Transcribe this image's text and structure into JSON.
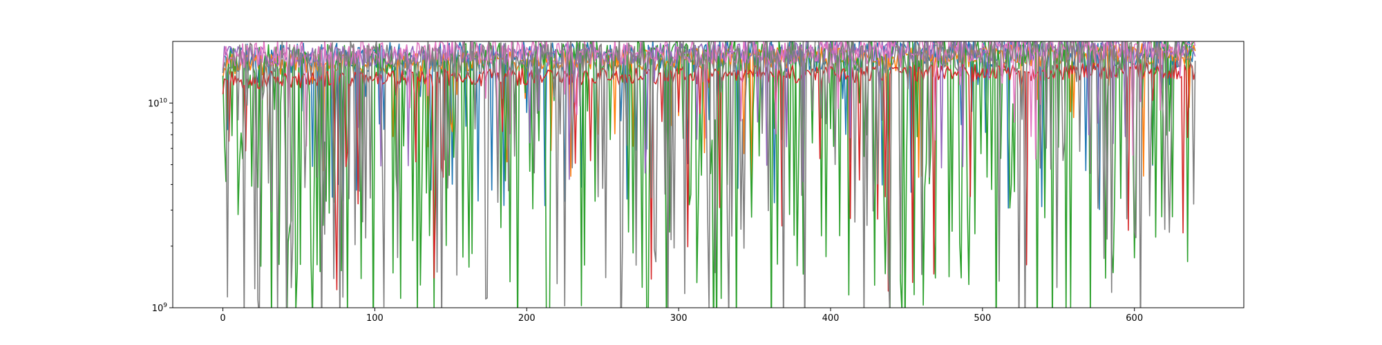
{
  "chart_data": {
    "type": "line",
    "title": "",
    "xlabel": "",
    "ylabel": "",
    "xlim": [
      -33,
      672
    ],
    "ylim": [
      1000000000,
      20000000000
    ],
    "yscale": "log",
    "grid": false,
    "legend": "none",
    "x_ticks": [
      {
        "value": 0,
        "label": "0"
      },
      {
        "value": 100,
        "label": "100"
      },
      {
        "value": 200,
        "label": "200"
      },
      {
        "value": 300,
        "label": "300"
      },
      {
        "value": 400,
        "label": "400"
      },
      {
        "value": 500,
        "label": "500"
      },
      {
        "value": 600,
        "label": "600"
      }
    ],
    "y_ticks": [
      {
        "value": 1000000000,
        "base": "10",
        "exp": "9"
      },
      {
        "value": 10000000000,
        "base": "10",
        "exp": "10"
      }
    ],
    "y_minor_ticks": [
      2000000000,
      3000000000,
      4000000000,
      5000000000,
      6000000000,
      7000000000,
      8000000000,
      9000000000
    ],
    "series": [
      {
        "color": "#1f77b4",
        "x_range": [
          0,
          640
        ],
        "base": 16500000000,
        "trend_end": 18000000000,
        "noise": 0.18,
        "dip_prob": 0.1,
        "dip_min": 3000000000,
        "seed": 11
      },
      {
        "color": "#ff7f0e",
        "x_range": [
          0,
          640
        ],
        "base": 15500000000,
        "trend_end": 17500000000,
        "noise": 0.12,
        "dip_prob": 0.06,
        "dip_min": 4000000000,
        "seed": 23
      },
      {
        "color": "#2ca02c",
        "x_range": [
          0,
          640
        ],
        "base": 16000000000,
        "trend_end": 18500000000,
        "noise": 0.2,
        "dip_prob": 0.34,
        "dip_min": 600000000,
        "seed": 37
      },
      {
        "color": "#d62728",
        "x_range": [
          0,
          640
        ],
        "base": 13000000000,
        "trend_end": 14500000000,
        "noise": 0.1,
        "dip_prob": 0.09,
        "dip_min": 1200000000,
        "seed": 41
      },
      {
        "color": "#9467bd",
        "x_range": [
          0,
          640
        ],
        "base": 17000000000,
        "trend_end": 18500000000,
        "noise": 0.12,
        "dip_prob": 0.05,
        "dip_min": 4000000000,
        "seed": 53
      },
      {
        "color": "#e377c2",
        "x_range": [
          0,
          640
        ],
        "base": 17500000000,
        "trend_end": 18500000000,
        "noise": 0.15,
        "dip_prob": 0.05,
        "dip_min": 5000000000,
        "seed": 67
      },
      {
        "color": "#7f7f7f",
        "x_range": [
          0,
          640
        ],
        "base": 16500000000,
        "trend_end": 18000000000,
        "noise": 0.2,
        "dip_prob": 0.24,
        "dip_min": 600000000,
        "seed": 79
      }
    ]
  }
}
